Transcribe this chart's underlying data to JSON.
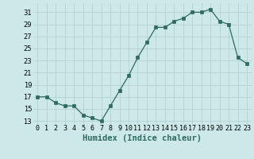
{
  "x": [
    0,
    1,
    2,
    3,
    4,
    5,
    6,
    7,
    8,
    9,
    10,
    11,
    12,
    13,
    14,
    15,
    16,
    17,
    18,
    19,
    20,
    21,
    22,
    23
  ],
  "y": [
    17,
    17,
    16,
    15.5,
    15.5,
    14,
    13.5,
    13,
    15.5,
    18,
    20.5,
    23.5,
    26,
    28.5,
    28.5,
    29.5,
    30,
    31,
    31,
    31.5,
    29.5,
    29,
    23.5,
    22.5
  ],
  "xlabel": "Humidex (Indice chaleur)",
  "xlim": [
    -0.5,
    23.5
  ],
  "ylim": [
    12.5,
    32.5
  ],
  "yticks": [
    13,
    15,
    17,
    19,
    21,
    23,
    25,
    27,
    29,
    31
  ],
  "xtick_labels": [
    "0",
    "1",
    "2",
    "3",
    "4",
    "5",
    "6",
    "7",
    "8",
    "9",
    "10",
    "11",
    "12",
    "13",
    "14",
    "15",
    "16",
    "17",
    "18",
    "19",
    "20",
    "21",
    "22",
    "23"
  ],
  "line_color": "#2e6b5e",
  "marker": "s",
  "marker_size": 2.5,
  "bg_color": "#cce8e8",
  "grid_color": "#b0cccc",
  "label_fontsize": 7.5,
  "tick_fontsize": 6
}
